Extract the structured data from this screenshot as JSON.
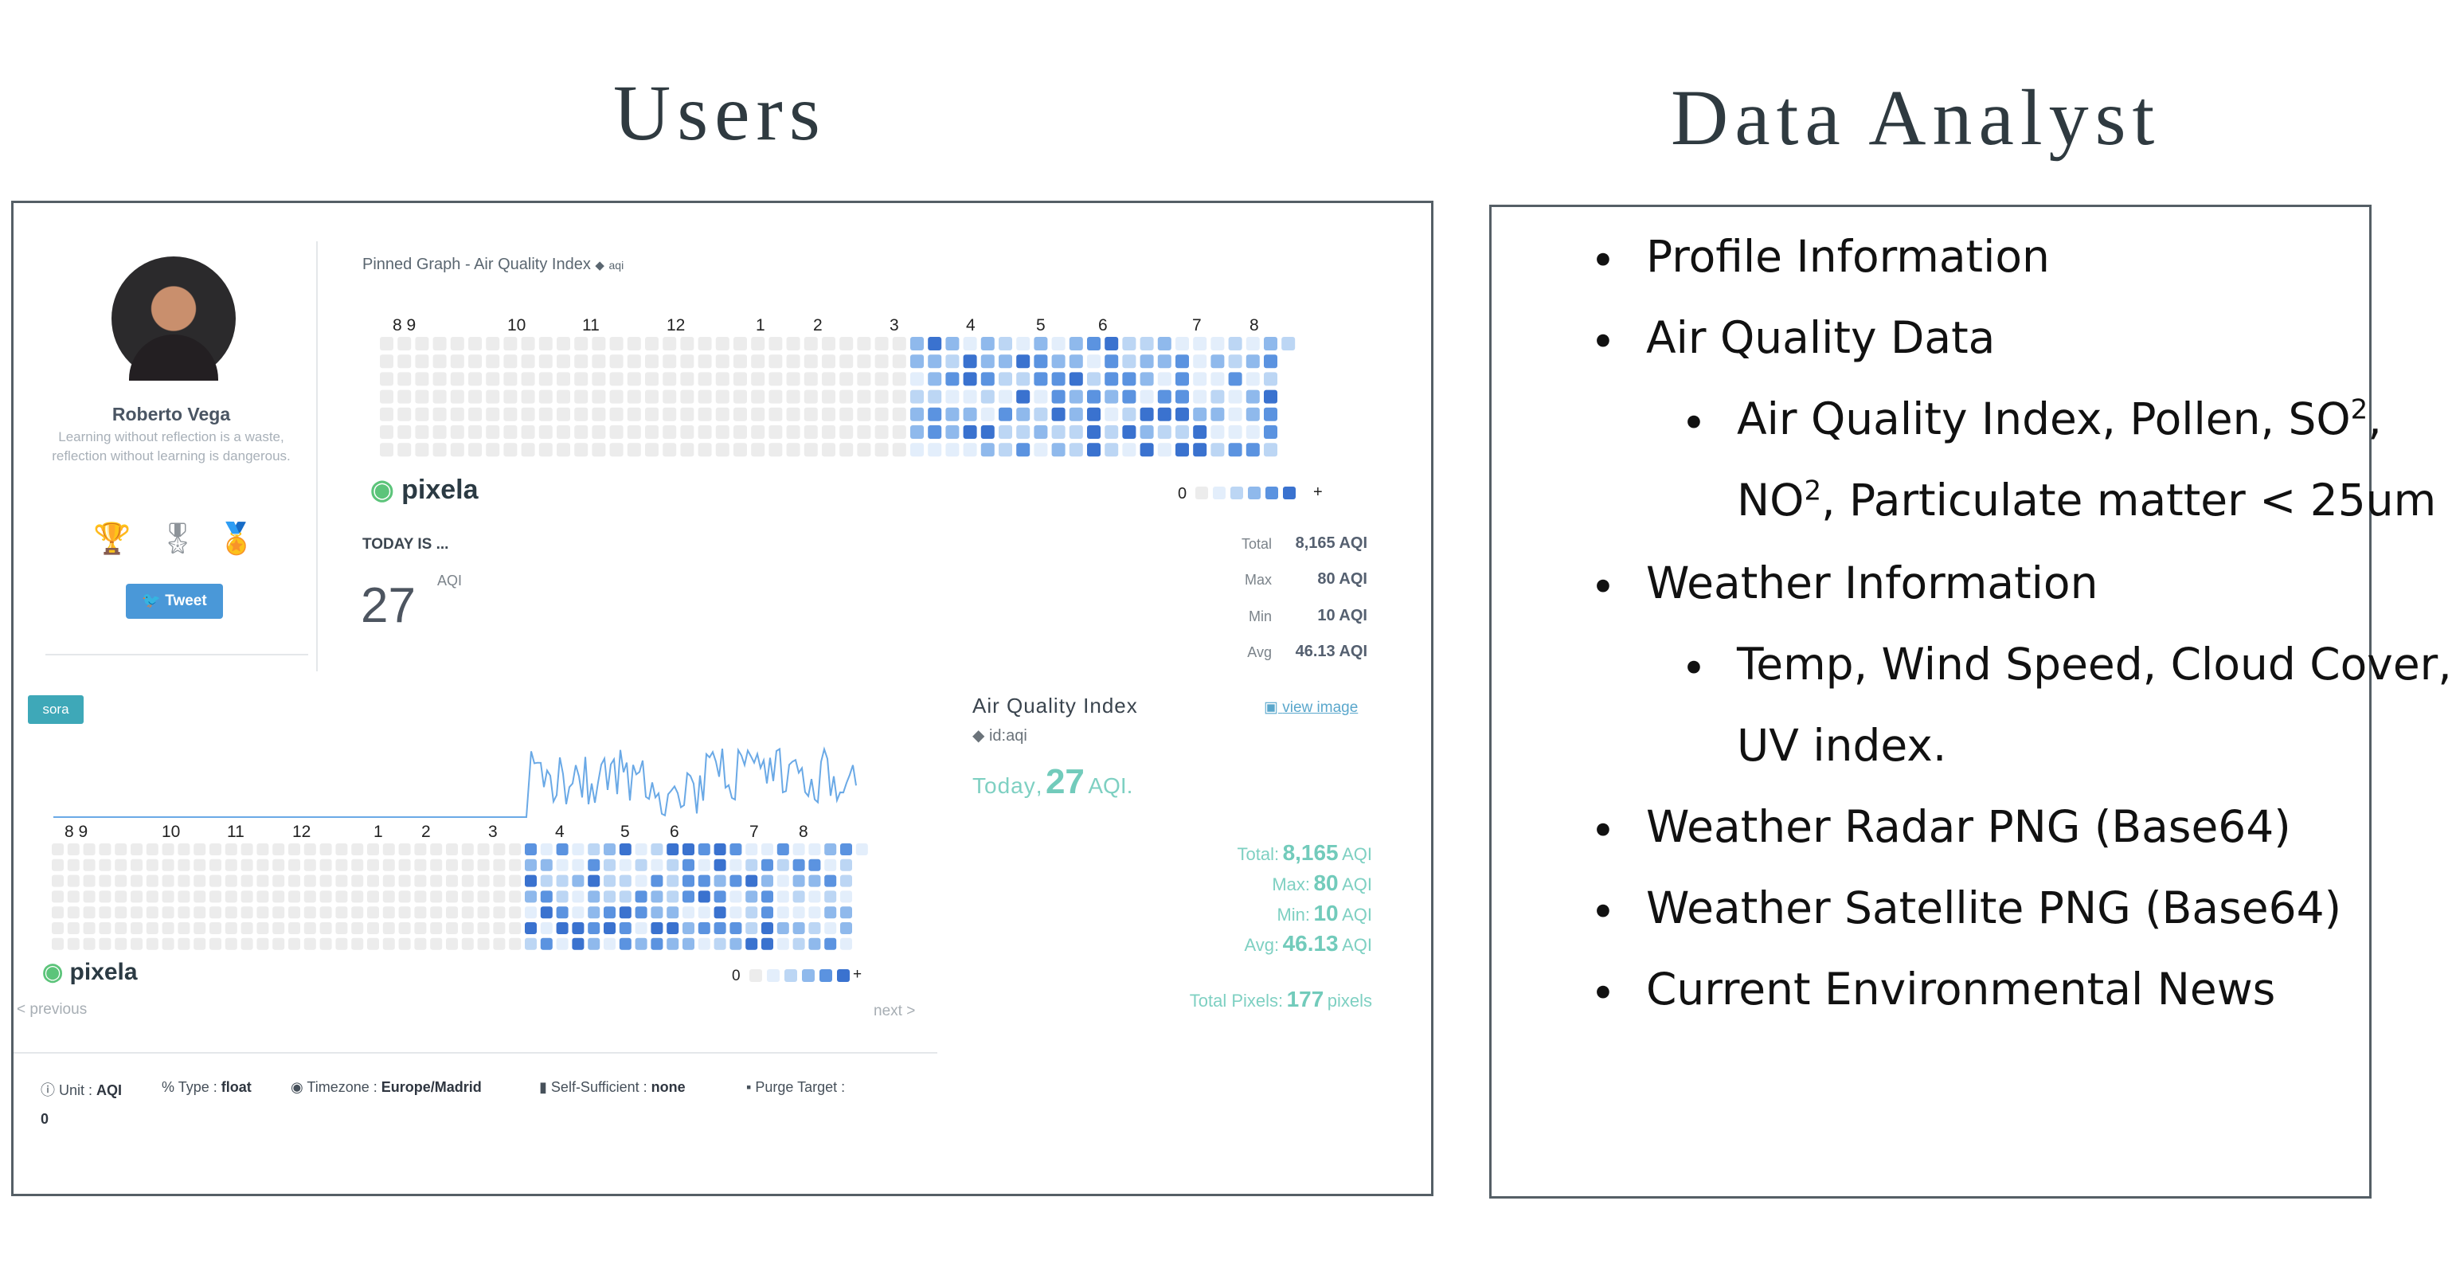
{
  "headings": {
    "users": "Users",
    "analyst": "Data Analyst"
  },
  "profile": {
    "name": "Roberto Vega",
    "bio": "Learning without reflection is a waste, reflection without learning is dangerous.",
    "badges": [
      "trophy-icon",
      "ribbon-icon",
      "medal-icon"
    ],
    "tweet_label": "Tweet"
  },
  "pinned": {
    "title": "Pinned Graph - Air Quality Index",
    "tag": "aqi",
    "month_labels": [
      "8 9",
      "10",
      "11",
      "12",
      "1",
      "2",
      "3",
      "4",
      "5",
      "6",
      "7",
      "8"
    ],
    "legend_start": "0",
    "legend_end": "+",
    "logo": "pixela",
    "today_label": "TODAY IS ...",
    "today_value": "27",
    "today_unit": "AQI",
    "stats": [
      {
        "key": "Total",
        "value": "8,165 AQI"
      },
      {
        "key": "Max",
        "value": "80 AQI"
      },
      {
        "key": "Min",
        "value": "10 AQI"
      },
      {
        "key": "Avg",
        "value": "46.13 AQI"
      }
    ]
  },
  "graph": {
    "tag": "sora",
    "month_labels": [
      "8 9",
      "10",
      "11",
      "12",
      "1",
      "2",
      "3",
      "4",
      "5",
      "6",
      "7",
      "8"
    ],
    "legend_start": "0",
    "legend_end": "+",
    "logo": "pixela",
    "prev": "< previous",
    "next": "next >"
  },
  "detail": {
    "title": "Air Quality Index",
    "id": "id:aqi",
    "view_image": "view image",
    "today_prefix": "Today",
    "today_value": "27",
    "today_unit": "AQI.",
    "rows": [
      {
        "key": "Total:",
        "value": "8,165",
        "unit": "AQI"
      },
      {
        "key": "Max:",
        "value": "80",
        "unit": "AQI"
      },
      {
        "key": "Min:",
        "value": "10",
        "unit": "AQI"
      },
      {
        "key": "Avg:",
        "value": "46.13",
        "unit": "AQI"
      }
    ],
    "pixels_key": "Total Pixels:",
    "pixels_value": "177",
    "pixels_unit": "pixels"
  },
  "footer": {
    "unit_key": "Unit :",
    "unit_val": "AQI",
    "type_key": "Type :",
    "type_val": "float",
    "tz_key": "Timezone :",
    "tz_val": "Europe/Madrid",
    "self_key": "Self-Sufficient :",
    "self_val": "none",
    "purge_key": "Purge Target :",
    "purge_val": "0"
  },
  "analyst": {
    "items": [
      "Profile Information",
      "Air Quality Data",
      "Air Quality Index, Pollen, SO",
      "NO",
      "Weather Information",
      "Temp, Wind Speed, Cloud Cover,",
      "UV index.",
      "Weather Radar PNG (Base64)",
      "Weather Satellite PNG (Base64)",
      "Current Environmental News"
    ],
    "sup": "2",
    "so_tail": ",",
    "no_tail": ", Particulate matter < 25um"
  },
  "colors": {
    "empty": "#ececec",
    "levels": [
      "#e3eefb",
      "#bcd6f4",
      "#8fb9ec",
      "#5b93e0",
      "#3a72cf"
    ],
    "teal": "#7ed0c2"
  }
}
